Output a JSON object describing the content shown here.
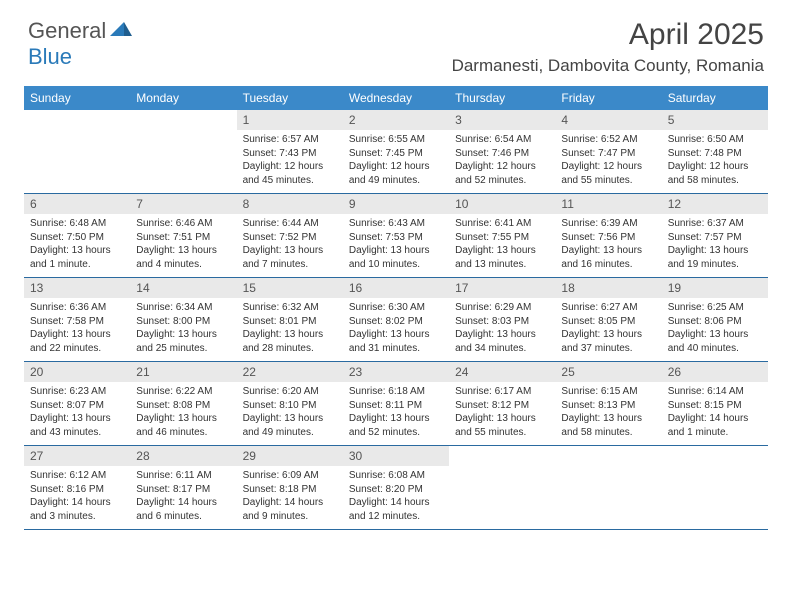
{
  "logo": {
    "word1": "General",
    "word2": "Blue"
  },
  "title": "April 2025",
  "location": "Darmanesti, Dambovita County, Romania",
  "dayNames": [
    "Sunday",
    "Monday",
    "Tuesday",
    "Wednesday",
    "Thursday",
    "Friday",
    "Saturday"
  ],
  "colors": {
    "headerBar": "#3b89c9",
    "dayNumBg": "#e9e9e9",
    "weekBorder": "#2a6aa0",
    "logoBlue": "#2a7ab9"
  },
  "weeks": [
    [
      {
        "day": "",
        "empty": true
      },
      {
        "day": "",
        "empty": true
      },
      {
        "day": "1",
        "sunrise": "Sunrise: 6:57 AM",
        "sunset": "Sunset: 7:43 PM",
        "daylight": "Daylight: 12 hours and 45 minutes."
      },
      {
        "day": "2",
        "sunrise": "Sunrise: 6:55 AM",
        "sunset": "Sunset: 7:45 PM",
        "daylight": "Daylight: 12 hours and 49 minutes."
      },
      {
        "day": "3",
        "sunrise": "Sunrise: 6:54 AM",
        "sunset": "Sunset: 7:46 PM",
        "daylight": "Daylight: 12 hours and 52 minutes."
      },
      {
        "day": "4",
        "sunrise": "Sunrise: 6:52 AM",
        "sunset": "Sunset: 7:47 PM",
        "daylight": "Daylight: 12 hours and 55 minutes."
      },
      {
        "day": "5",
        "sunrise": "Sunrise: 6:50 AM",
        "sunset": "Sunset: 7:48 PM",
        "daylight": "Daylight: 12 hours and 58 minutes."
      }
    ],
    [
      {
        "day": "6",
        "sunrise": "Sunrise: 6:48 AM",
        "sunset": "Sunset: 7:50 PM",
        "daylight": "Daylight: 13 hours and 1 minute."
      },
      {
        "day": "7",
        "sunrise": "Sunrise: 6:46 AM",
        "sunset": "Sunset: 7:51 PM",
        "daylight": "Daylight: 13 hours and 4 minutes."
      },
      {
        "day": "8",
        "sunrise": "Sunrise: 6:44 AM",
        "sunset": "Sunset: 7:52 PM",
        "daylight": "Daylight: 13 hours and 7 minutes."
      },
      {
        "day": "9",
        "sunrise": "Sunrise: 6:43 AM",
        "sunset": "Sunset: 7:53 PM",
        "daylight": "Daylight: 13 hours and 10 minutes."
      },
      {
        "day": "10",
        "sunrise": "Sunrise: 6:41 AM",
        "sunset": "Sunset: 7:55 PM",
        "daylight": "Daylight: 13 hours and 13 minutes."
      },
      {
        "day": "11",
        "sunrise": "Sunrise: 6:39 AM",
        "sunset": "Sunset: 7:56 PM",
        "daylight": "Daylight: 13 hours and 16 minutes."
      },
      {
        "day": "12",
        "sunrise": "Sunrise: 6:37 AM",
        "sunset": "Sunset: 7:57 PM",
        "daylight": "Daylight: 13 hours and 19 minutes."
      }
    ],
    [
      {
        "day": "13",
        "sunrise": "Sunrise: 6:36 AM",
        "sunset": "Sunset: 7:58 PM",
        "daylight": "Daylight: 13 hours and 22 minutes."
      },
      {
        "day": "14",
        "sunrise": "Sunrise: 6:34 AM",
        "sunset": "Sunset: 8:00 PM",
        "daylight": "Daylight: 13 hours and 25 minutes."
      },
      {
        "day": "15",
        "sunrise": "Sunrise: 6:32 AM",
        "sunset": "Sunset: 8:01 PM",
        "daylight": "Daylight: 13 hours and 28 minutes."
      },
      {
        "day": "16",
        "sunrise": "Sunrise: 6:30 AM",
        "sunset": "Sunset: 8:02 PM",
        "daylight": "Daylight: 13 hours and 31 minutes."
      },
      {
        "day": "17",
        "sunrise": "Sunrise: 6:29 AM",
        "sunset": "Sunset: 8:03 PM",
        "daylight": "Daylight: 13 hours and 34 minutes."
      },
      {
        "day": "18",
        "sunrise": "Sunrise: 6:27 AM",
        "sunset": "Sunset: 8:05 PM",
        "daylight": "Daylight: 13 hours and 37 minutes."
      },
      {
        "day": "19",
        "sunrise": "Sunrise: 6:25 AM",
        "sunset": "Sunset: 8:06 PM",
        "daylight": "Daylight: 13 hours and 40 minutes."
      }
    ],
    [
      {
        "day": "20",
        "sunrise": "Sunrise: 6:23 AM",
        "sunset": "Sunset: 8:07 PM",
        "daylight": "Daylight: 13 hours and 43 minutes."
      },
      {
        "day": "21",
        "sunrise": "Sunrise: 6:22 AM",
        "sunset": "Sunset: 8:08 PM",
        "daylight": "Daylight: 13 hours and 46 minutes."
      },
      {
        "day": "22",
        "sunrise": "Sunrise: 6:20 AM",
        "sunset": "Sunset: 8:10 PM",
        "daylight": "Daylight: 13 hours and 49 minutes."
      },
      {
        "day": "23",
        "sunrise": "Sunrise: 6:18 AM",
        "sunset": "Sunset: 8:11 PM",
        "daylight": "Daylight: 13 hours and 52 minutes."
      },
      {
        "day": "24",
        "sunrise": "Sunrise: 6:17 AM",
        "sunset": "Sunset: 8:12 PM",
        "daylight": "Daylight: 13 hours and 55 minutes."
      },
      {
        "day": "25",
        "sunrise": "Sunrise: 6:15 AM",
        "sunset": "Sunset: 8:13 PM",
        "daylight": "Daylight: 13 hours and 58 minutes."
      },
      {
        "day": "26",
        "sunrise": "Sunrise: 6:14 AM",
        "sunset": "Sunset: 8:15 PM",
        "daylight": "Daylight: 14 hours and 1 minute."
      }
    ],
    [
      {
        "day": "27",
        "sunrise": "Sunrise: 6:12 AM",
        "sunset": "Sunset: 8:16 PM",
        "daylight": "Daylight: 14 hours and 3 minutes."
      },
      {
        "day": "28",
        "sunrise": "Sunrise: 6:11 AM",
        "sunset": "Sunset: 8:17 PM",
        "daylight": "Daylight: 14 hours and 6 minutes."
      },
      {
        "day": "29",
        "sunrise": "Sunrise: 6:09 AM",
        "sunset": "Sunset: 8:18 PM",
        "daylight": "Daylight: 14 hours and 9 minutes."
      },
      {
        "day": "30",
        "sunrise": "Sunrise: 6:08 AM",
        "sunset": "Sunset: 8:20 PM",
        "daylight": "Daylight: 14 hours and 12 minutes."
      },
      {
        "day": "",
        "empty": true
      },
      {
        "day": "",
        "empty": true
      },
      {
        "day": "",
        "empty": true
      }
    ]
  ]
}
